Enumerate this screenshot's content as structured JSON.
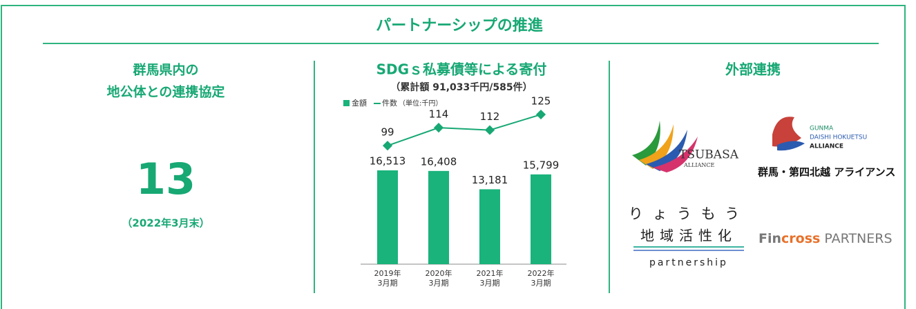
{
  "header": {
    "title": "パートナーシップの推進"
  },
  "left": {
    "title_lines": [
      "群馬県内の",
      "地公体との連携協定"
    ],
    "count": 13,
    "note": "（2022年3月末）"
  },
  "right": {
    "title": "外部連携",
    "partners": [
      {
        "name": "TSUBASA",
        "sub": "ALLIANCE"
      },
      {
        "name": "GUNMA",
        "line2": "DAISHI HOKUETSU",
        "line3": "ALLIANCE",
        "jp": "群馬・第四北越 アライアンス"
      },
      {
        "name": "りょうもう",
        "line2": "地域活性化",
        "line3": "partnership"
      },
      {
        "name": "Fin",
        "accent": "cross",
        "rest": " PARTNERS"
      }
    ]
  },
  "chart_data": {
    "type": "bar",
    "title": "SDGｓ私募債等による寄付",
    "subtitle": "（累計額 91,033千円/585件）",
    "unit": "（単位:千円）",
    "categories": [
      "2019年3月期",
      "2020年3月期",
      "2021年3月期",
      "2022年3月期"
    ],
    "series": [
      {
        "name": "金額",
        "color": "#19b37b",
        "values": [
          16513,
          16408,
          13181,
          15799
        ],
        "value_labels": [
          "16,513",
          "16,408",
          "13,181",
          "15,799"
        ]
      },
      {
        "name": "件数",
        "color": "#17a874",
        "axis": "y2",
        "values": [
          99,
          114,
          112,
          125
        ]
      }
    ],
    "ylim": [
      0,
      29500
    ],
    "y2lim": [
      0,
      140
    ]
  }
}
